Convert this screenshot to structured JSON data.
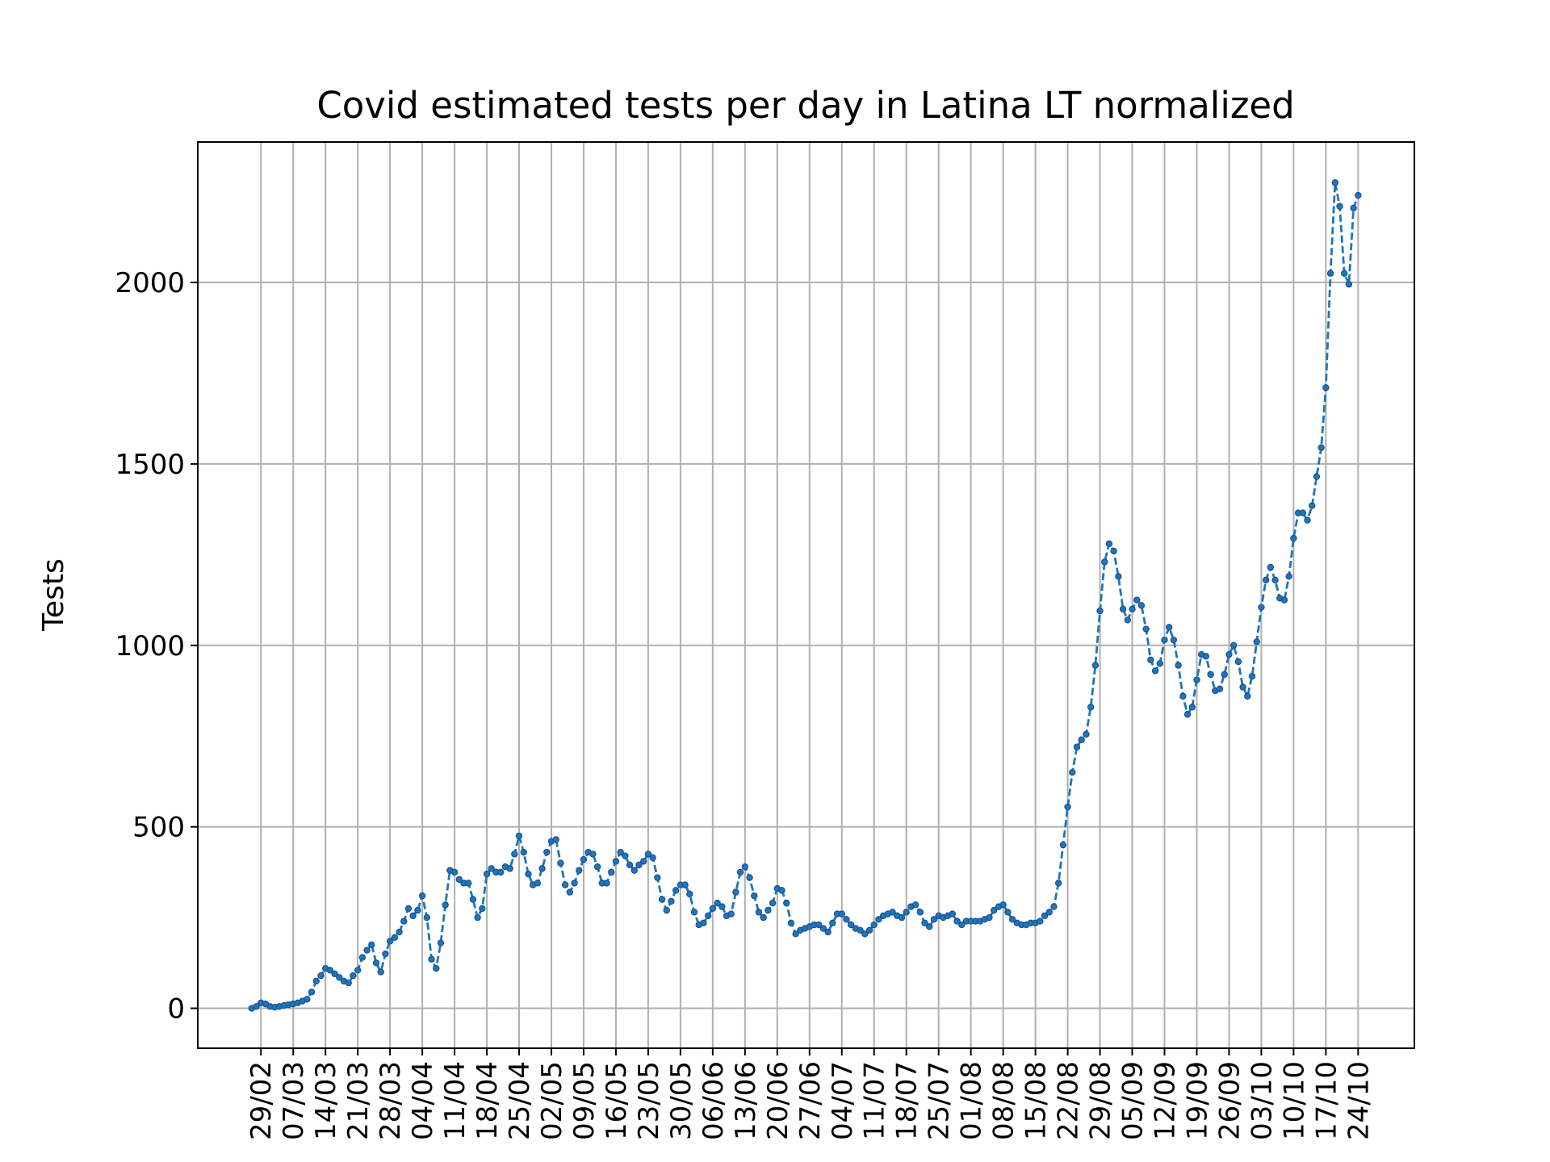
{
  "chart_data": {
    "type": "line",
    "title": "Covid estimated tests per day in Latina LT normalized",
    "y_label": "Tests",
    "categories": [
      null,
      null,
      "29/02",
      null,
      null,
      null,
      null,
      null,
      null,
      "07/03",
      null,
      null,
      null,
      null,
      null,
      null,
      "14/03",
      null,
      null,
      null,
      null,
      null,
      null,
      "21/03",
      null,
      null,
      null,
      null,
      null,
      null,
      "28/03",
      null,
      null,
      null,
      null,
      null,
      null,
      "04/04",
      null,
      null,
      null,
      null,
      null,
      null,
      "11/04",
      null,
      null,
      null,
      null,
      null,
      null,
      "18/04",
      null,
      null,
      null,
      null,
      null,
      null,
      "25/04",
      null,
      null,
      null,
      null,
      null,
      null,
      "02/05",
      null,
      null,
      null,
      null,
      null,
      null,
      "09/05",
      null,
      null,
      null,
      null,
      null,
      null,
      "16/05",
      null,
      null,
      null,
      null,
      null,
      null,
      "23/05",
      null,
      null,
      null,
      null,
      null,
      null,
      "30/05",
      null,
      null,
      null,
      null,
      null,
      null,
      "06/06",
      null,
      null,
      null,
      null,
      null,
      null,
      "13/06",
      null,
      null,
      null,
      null,
      null,
      null,
      "20/06",
      null,
      null,
      null,
      null,
      null,
      null,
      "27/06",
      null,
      null,
      null,
      null,
      null,
      null,
      "04/07",
      null,
      null,
      null,
      null,
      null,
      null,
      "11/07",
      null,
      null,
      null,
      null,
      null,
      null,
      "18/07",
      null,
      null,
      null,
      null,
      null,
      null,
      "25/07",
      null,
      null,
      null,
      null,
      null,
      null,
      "01/08",
      null,
      null,
      null,
      null,
      null,
      null,
      "08/08",
      null,
      null,
      null,
      null,
      null,
      null,
      "15/08",
      null,
      null,
      null,
      null,
      null,
      null,
      "22/08",
      null,
      null,
      null,
      null,
      null,
      null,
      "29/08",
      null,
      null,
      null,
      null,
      null,
      null,
      "05/09",
      null,
      null,
      null,
      null,
      null,
      null,
      "12/09",
      null,
      null,
      null,
      null,
      null,
      null,
      "19/09",
      null,
      null,
      null,
      null,
      null,
      null,
      "26/09",
      null,
      null,
      null,
      null,
      null,
      null,
      "03/10",
      null,
      null,
      null,
      null,
      null,
      null,
      "10/10",
      null,
      null,
      null,
      null,
      null,
      null,
      "17/10",
      null,
      null,
      null,
      null,
      null,
      null,
      "24/10"
    ],
    "series": [
      {
        "color": "#1f77b4",
        "values": [
          0,
          5,
          15,
          12,
          5,
          3,
          5,
          8,
          10,
          12,
          15,
          20,
          25,
          45,
          75,
          90,
          110,
          105,
          95,
          85,
          75,
          70,
          90,
          105,
          140,
          160,
          175,
          125,
          100,
          150,
          185,
          195,
          210,
          240,
          275,
          255,
          270,
          310,
          250,
          135,
          110,
          180,
          285,
          380,
          375,
          355,
          345,
          345,
          300,
          250,
          275,
          370,
          385,
          375,
          375,
          390,
          385,
          425,
          475,
          430,
          370,
          340,
          345,
          385,
          430,
          460,
          465,
          400,
          340,
          320,
          345,
          380,
          410,
          430,
          425,
          390,
          345,
          345,
          375,
          405,
          430,
          420,
          395,
          380,
          395,
          405,
          425,
          415,
          360,
          300,
          270,
          295,
          325,
          340,
          340,
          315,
          265,
          230,
          235,
          255,
          275,
          290,
          280,
          255,
          260,
          320,
          375,
          390,
          360,
          310,
          265,
          250,
          270,
          290,
          330,
          325,
          290,
          235,
          205,
          215,
          220,
          225,
          230,
          230,
          220,
          210,
          235,
          260,
          260,
          245,
          230,
          220,
          215,
          205,
          215,
          230,
          245,
          255,
          260,
          265,
          255,
          250,
          265,
          280,
          285,
          265,
          235,
          225,
          245,
          255,
          250,
          255,
          260,
          240,
          230,
          240,
          240,
          240,
          240,
          245,
          250,
          270,
          280,
          285,
          265,
          245,
          235,
          230,
          230,
          235,
          235,
          240,
          255,
          265,
          280,
          345,
          450,
          555,
          650,
          720,
          740,
          755,
          830,
          945,
          1095,
          1230,
          1280,
          1260,
          1190,
          1100,
          1070,
          1100,
          1125,
          1110,
          1045,
          960,
          930,
          950,
          1015,
          1050,
          1015,
          945,
          860,
          810,
          830,
          905,
          975,
          970,
          920,
          875,
          880,
          920,
          975,
          1000,
          955,
          885,
          860,
          915,
          1010,
          1105,
          1180,
          1215,
          1180,
          1130,
          1125,
          1190,
          1295,
          1365,
          1365,
          1345,
          1385,
          1465,
          1545,
          1710,
          2025,
          2275,
          2210,
          2025,
          1995,
          2205,
          2240
        ]
      }
    ],
    "ylim": [
      -110,
      2387
    ],
    "yticks": [
      0,
      500,
      1000,
      1500,
      2000
    ],
    "grid": true
  }
}
